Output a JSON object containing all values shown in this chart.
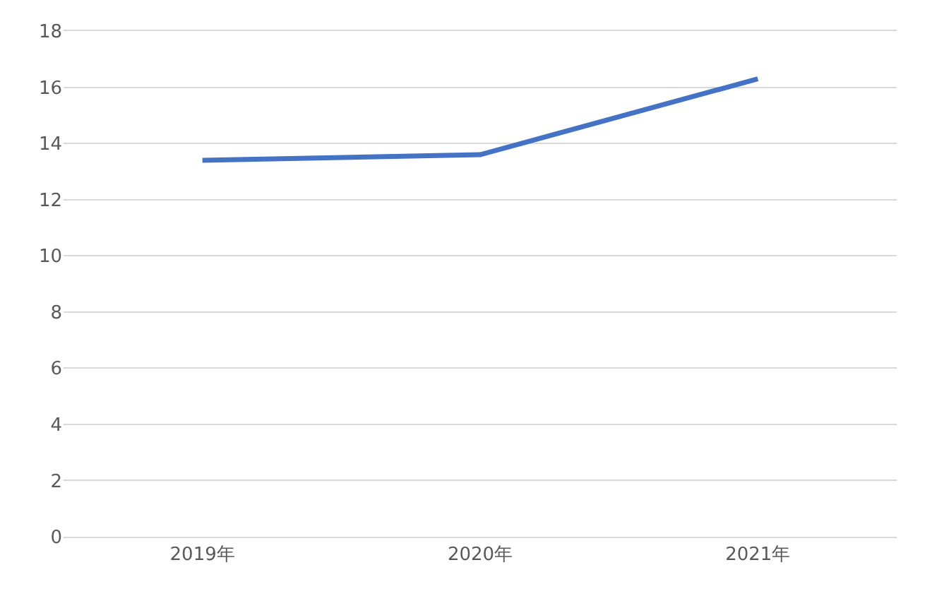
{
  "chart_data": {
    "type": "line",
    "categories": [
      "2019年",
      "2020年",
      "2021年"
    ],
    "series": [
      {
        "color": "#4472c4",
        "values": [
          13.4,
          13.6,
          16.3
        ]
      }
    ],
    "ylim": [
      0,
      18
    ],
    "yticks": [
      0,
      2,
      4,
      6,
      8,
      10,
      12,
      14,
      16,
      18
    ],
    "grid": "y",
    "marker": "none",
    "line_style": "solid"
  }
}
